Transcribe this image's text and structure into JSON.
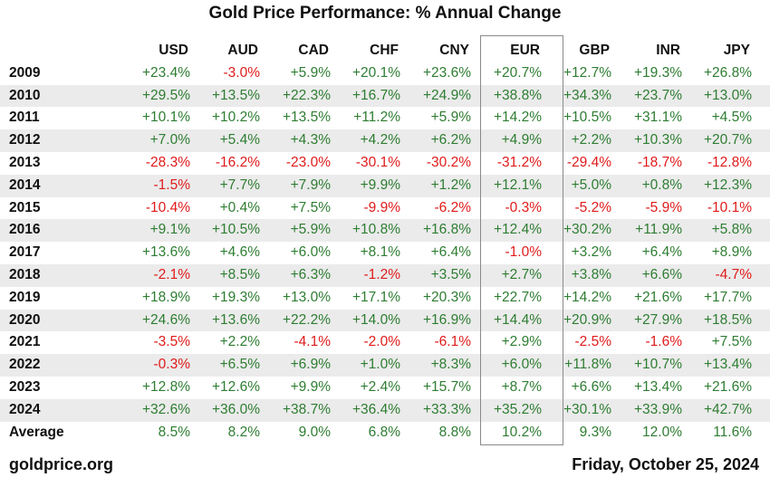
{
  "title": "Gold Price Performance: % Annual Change",
  "footer": {
    "source": "goldprice.org",
    "date": "Friday, October 25, 2024"
  },
  "colors": {
    "positive": "#2e7d32",
    "negative": "#e01b1b",
    "stripe": "#ebebeb",
    "highlight_border": "#8a8a8a"
  },
  "highlighted_column": "EUR",
  "chart_data": {
    "type": "table",
    "title": "Gold Price Performance: % Annual Change",
    "columns": [
      "USD",
      "AUD",
      "CAD",
      "CHF",
      "CNY",
      "EUR",
      "GBP",
      "INR",
      "JPY"
    ],
    "rows": [
      {
        "label": "2009",
        "values": [
          "+23.4%",
          "-3.0%",
          "+5.9%",
          "+20.1%",
          "+23.6%",
          "+20.7%",
          "+12.7%",
          "+19.3%",
          "+26.8%"
        ]
      },
      {
        "label": "2010",
        "values": [
          "+29.5%",
          "+13.5%",
          "+22.3%",
          "+16.7%",
          "+24.9%",
          "+38.8%",
          "+34.3%",
          "+23.7%",
          "+13.0%"
        ]
      },
      {
        "label": "2011",
        "values": [
          "+10.1%",
          "+10.2%",
          "+13.5%",
          "+11.2%",
          "+5.9%",
          "+14.2%",
          "+10.5%",
          "+31.1%",
          "+4.5%"
        ]
      },
      {
        "label": "2012",
        "values": [
          "+7.0%",
          "+5.4%",
          "+4.3%",
          "+4.2%",
          "+6.2%",
          "+4.9%",
          "+2.2%",
          "+10.3%",
          "+20.7%"
        ]
      },
      {
        "label": "2013",
        "values": [
          "-28.3%",
          "-16.2%",
          "-23.0%",
          "-30.1%",
          "-30.2%",
          "-31.2%",
          "-29.4%",
          "-18.7%",
          "-12.8%"
        ]
      },
      {
        "label": "2014",
        "values": [
          "-1.5%",
          "+7.7%",
          "+7.9%",
          "+9.9%",
          "+1.2%",
          "+12.1%",
          "+5.0%",
          "+0.8%",
          "+12.3%"
        ]
      },
      {
        "label": "2015",
        "values": [
          "-10.4%",
          "+0.4%",
          "+7.5%",
          "-9.9%",
          "-6.2%",
          "-0.3%",
          "-5.2%",
          "-5.9%",
          "-10.1%"
        ]
      },
      {
        "label": "2016",
        "values": [
          "+9.1%",
          "+10.5%",
          "+5.9%",
          "+10.8%",
          "+16.8%",
          "+12.4%",
          "+30.2%",
          "+11.9%",
          "+5.8%"
        ]
      },
      {
        "label": "2017",
        "values": [
          "+13.6%",
          "+4.6%",
          "+6.0%",
          "+8.1%",
          "+6.4%",
          "-1.0%",
          "+3.2%",
          "+6.4%",
          "+8.9%"
        ]
      },
      {
        "label": "2018",
        "values": [
          "-2.1%",
          "+8.5%",
          "+6.3%",
          "-1.2%",
          "+3.5%",
          "+2.7%",
          "+3.8%",
          "+6.6%",
          "-4.7%"
        ]
      },
      {
        "label": "2019",
        "values": [
          "+18.9%",
          "+19.3%",
          "+13.0%",
          "+17.1%",
          "+20.3%",
          "+22.7%",
          "+14.2%",
          "+21.6%",
          "+17.7%"
        ]
      },
      {
        "label": "2020",
        "values": [
          "+24.6%",
          "+13.6%",
          "+22.2%",
          "+14.0%",
          "+16.9%",
          "+14.4%",
          "+20.9%",
          "+27.9%",
          "+18.5%"
        ]
      },
      {
        "label": "2021",
        "values": [
          "-3.5%",
          "+2.2%",
          "-4.1%",
          "-2.0%",
          "-6.1%",
          "+2.9%",
          "-2.5%",
          "-1.6%",
          "+7.5%"
        ]
      },
      {
        "label": "2022",
        "values": [
          "-0.3%",
          "+6.5%",
          "+6.9%",
          "+1.0%",
          "+8.3%",
          "+6.0%",
          "+11.8%",
          "+10.7%",
          "+13.4%"
        ]
      },
      {
        "label": "2023",
        "values": [
          "+12.8%",
          "+12.6%",
          "+9.9%",
          "+2.4%",
          "+15.7%",
          "+8.7%",
          "+6.6%",
          "+13.4%",
          "+21.6%"
        ]
      },
      {
        "label": "2024",
        "values": [
          "+32.6%",
          "+36.0%",
          "+38.7%",
          "+36.4%",
          "+33.3%",
          "+35.2%",
          "+30.1%",
          "+33.9%",
          "+42.7%"
        ]
      },
      {
        "label": "Average",
        "values": [
          "8.5%",
          "8.2%",
          "9.0%",
          "6.8%",
          "8.8%",
          "10.2%",
          "9.3%",
          "12.0%",
          "11.6%"
        ]
      }
    ]
  }
}
